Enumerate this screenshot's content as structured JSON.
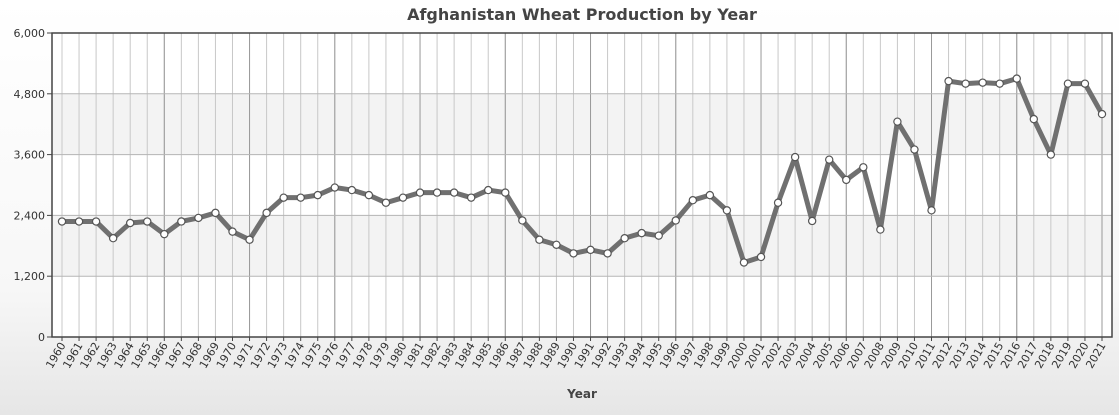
{
  "chart_data": {
    "type": "line",
    "title": "Afghanistan Wheat Production by Year",
    "xlabel": "Year",
    "ylabel": "",
    "ylim": [
      0,
      6000
    ],
    "yticks": [
      "0",
      "1,200",
      "2,400",
      "3,600",
      "4,800",
      "6,000"
    ],
    "grid": true,
    "categories": [
      "1960",
      "1961",
      "1962",
      "1963",
      "1964",
      "1965",
      "1966",
      "1967",
      "1968",
      "1969",
      "1970",
      "1971",
      "1972",
      "1973",
      "1974",
      "1975",
      "1976",
      "1977",
      "1978",
      "1979",
      "1980",
      "1981",
      "1982",
      "1983",
      "1984",
      "1985",
      "1986",
      "1987",
      "1988",
      "1989",
      "1990",
      "1991",
      "1992",
      "1993",
      "1994",
      "1995",
      "1996",
      "1997",
      "1998",
      "1999",
      "2000",
      "2001",
      "2002",
      "2003",
      "2004",
      "2005",
      "2006",
      "2007",
      "2008",
      "2009",
      "2010",
      "2011",
      "2012",
      "2013",
      "2014",
      "2015",
      "2016",
      "2017",
      "2018",
      "2019",
      "2020",
      "2021"
    ],
    "series": [
      {
        "color": "#707070",
        "values": [
          2279,
          2279,
          2279,
          1950,
          2250,
          2279,
          2030,
          2280,
          2350,
          2450,
          2080,
          1920,
          2450,
          2750,
          2750,
          2800,
          2950,
          2900,
          2800,
          2650,
          2750,
          2850,
          2850,
          2850,
          2750,
          2900,
          2850,
          2300,
          1920,
          1820,
          1650,
          1720,
          1650,
          1950,
          2050,
          2000,
          2300,
          2700,
          2800,
          2500,
          1470,
          1580,
          2650,
          3550,
          2290,
          3500,
          3100,
          3350,
          2120,
          4250,
          3700,
          2500,
          5050,
          5000,
          5020,
          5000,
          5100,
          4300,
          3600,
          5000,
          5000,
          4400
        ]
      }
    ]
  }
}
